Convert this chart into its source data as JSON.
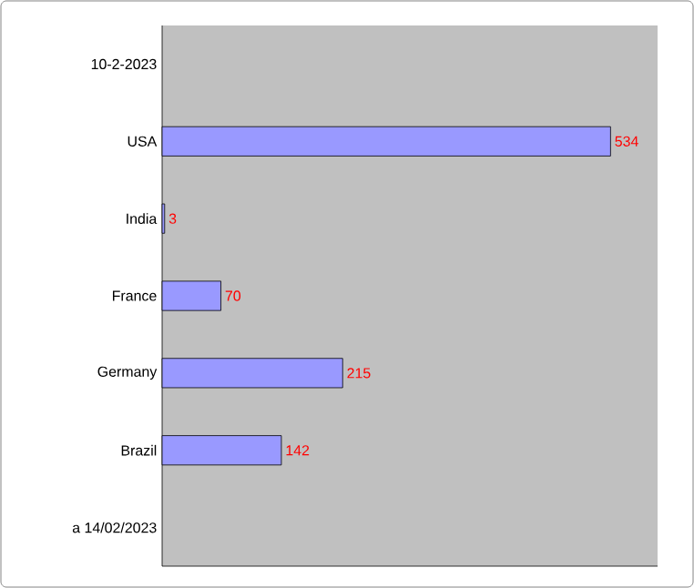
{
  "chart_data": {
    "type": "bar",
    "orientation": "horizontal",
    "categories": [
      "10-2-2023",
      "USA",
      "India",
      "France",
      "Germany",
      "Brazil",
      "a 14/02/2023"
    ],
    "values": [
      null,
      534,
      3,
      70,
      215,
      142,
      null
    ],
    "color": "#9999ff",
    "xlim": [
      0,
      590
    ],
    "tick_labels": "y",
    "data_labels": true
  }
}
